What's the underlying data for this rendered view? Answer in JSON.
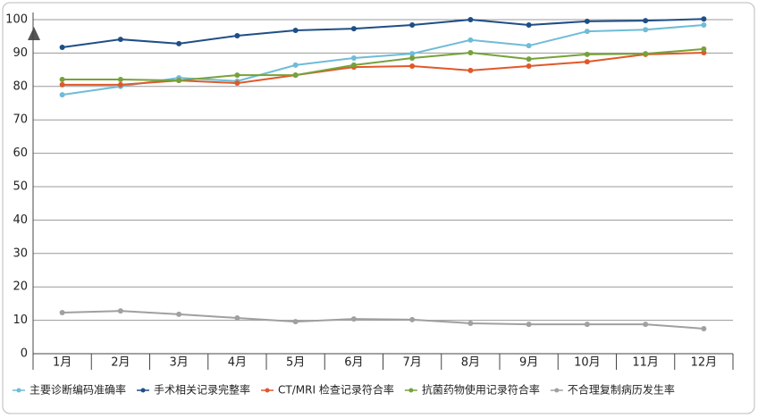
{
  "chart_data": {
    "type": "line",
    "categories": [
      "1月",
      "2月",
      "3月",
      "4月",
      "5月",
      "6月",
      "7月",
      "8月",
      "9月",
      "10月",
      "11月",
      "12月"
    ],
    "series": [
      {
        "name": "主要诊断编码准确率",
        "color": "#6fbcd6",
        "values": [
          77.5,
          80,
          82.6,
          81.6,
          86.4,
          88.5,
          89.8,
          93.9,
          92.2,
          96.5,
          97,
          98.4
        ]
      },
      {
        "name": "手术相关记录完整率",
        "color": "#1f4e86",
        "values": [
          91.7,
          94.1,
          92.8,
          95.2,
          96.8,
          97.3,
          98.4,
          100,
          98.4,
          99.5,
          99.7,
          100.2
        ]
      },
      {
        "name": "CT/MRI 检查记录符合率",
        "color": "#e0582a",
        "values": [
          80.5,
          80.5,
          81.8,
          81,
          83.4,
          85.8,
          86.1,
          84.8,
          86.1,
          87.4,
          89.6,
          90.1
        ]
      },
      {
        "name": "抗菌药物使用记录符合率",
        "color": "#76a23a",
        "values": [
          82.1,
          82.1,
          81.8,
          83.4,
          83.4,
          86.4,
          88.5,
          90.1,
          88.2,
          89.6,
          89.8,
          91.2
        ]
      },
      {
        "name": "不合理复制病历发生率",
        "color": "#a0a0a0",
        "values": [
          12.3,
          12.8,
          11.8,
          10.7,
          9.6,
          10.4,
          10.2,
          9.1,
          8.8,
          8.8,
          8.8,
          7.5
        ]
      }
    ],
    "ylim": [
      0,
      100
    ],
    "yticks": [
      0,
      10,
      20,
      30,
      40,
      50,
      60,
      70,
      80,
      90,
      100
    ],
    "grid": true
  }
}
